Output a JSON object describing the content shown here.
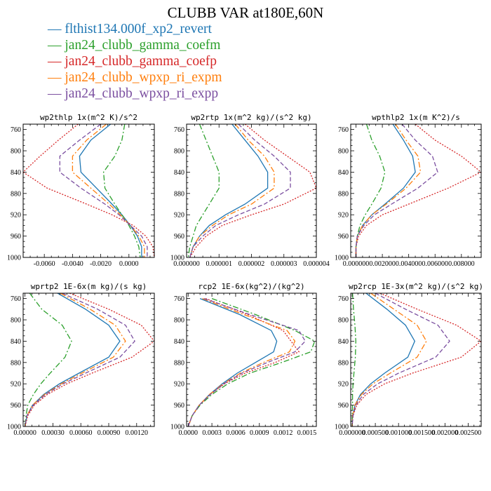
{
  "page_title": "CLUBB VAR at180E,60N",
  "series_meta": [
    {
      "name": "flthist134.000f_xp2_revert",
      "color": "#1f77b4",
      "dash": ""
    },
    {
      "name": "jan24_clubb_gamma_coefm",
      "color": "#2ca02c",
      "dash": "8,3,2,3"
    },
    {
      "name": "jan24_clubb_gamma_coefp",
      "color": "#d62728",
      "dash": "2,2"
    },
    {
      "name": "jan24_clubb_wpxp_ri_expm",
      "color": "#ff7f0e",
      "dash": "8,3,2,3"
    },
    {
      "name": "jan24_clubb_wpxp_ri_expp",
      "color": "#7b4fa0",
      "dash": "6,3"
    }
  ],
  "chart_data": [
    {
      "type": "line",
      "title": "wp2thlp  1x(m^2 K)/s^2",
      "xlim": [
        -0.0075,
        0.0018
      ],
      "ylim": [
        1000,
        750
      ],
      "y_inverted": true,
      "xticks": [
        -0.006,
        -0.004,
        -0.002,
        0.0
      ],
      "xtick_labels": [
        "-0.0060",
        "-0.0040",
        "-0.0020",
        "0.0000"
      ],
      "yticks": [
        760,
        800,
        840,
        880,
        920,
        960,
        1000
      ],
      "pressure": [
        750,
        780,
        810,
        840,
        870,
        900,
        920,
        940,
        960,
        980,
        1000
      ],
      "series": [
        {
          "name": "flthist134.000f_xp2_revert",
          "values": [
            -0.0013,
            -0.0027,
            -0.0035,
            -0.0034,
            -0.0023,
            -0.0012,
            -0.0005,
            0.0001,
            0.0006,
            0.0009,
            0.0009
          ]
        },
        {
          "name": "jan24_clubb_gamma_coefm",
          "values": [
            -0.0003,
            -0.0005,
            -0.001,
            -0.0018,
            -0.0017,
            -0.001,
            -0.0005,
            0.0,
            0.0004,
            0.0007,
            0.0008
          ]
        },
        {
          "name": "jan24_clubb_gamma_coefp",
          "values": [
            -0.0036,
            -0.005,
            -0.0063,
            -0.0075,
            -0.0058,
            -0.003,
            -0.0012,
            0.0003,
            0.0012,
            0.0017,
            0.0018
          ]
        },
        {
          "name": "jan24_clubb_wpxp_ri_expm",
          "values": [
            -0.0016,
            -0.003,
            -0.004,
            -0.004,
            -0.0027,
            -0.0014,
            -0.0006,
            0.0001,
            0.0007,
            0.0011,
            0.0011
          ]
        },
        {
          "name": "jan24_clubb_wpxp_ri_expp",
          "values": [
            -0.002,
            -0.0035,
            -0.0049,
            -0.0049,
            -0.0034,
            -0.0017,
            -0.0007,
            0.0001,
            0.0009,
            0.0013,
            0.0013
          ]
        }
      ]
    },
    {
      "type": "line",
      "title": "wp2rtp  1x(m^2 kg)/(s^2 kg)",
      "xlim": [
        0.0,
        4e-06
      ],
      "ylim": [
        1000,
        750
      ],
      "y_inverted": true,
      "xticks": [
        0.0,
        1e-06,
        2e-06,
        3e-06,
        4e-06
      ],
      "xtick_labels": [
        "0.000000",
        "0.000001",
        "0.000002",
        "0.000003",
        "0.000004"
      ],
      "yticks": [
        760,
        800,
        840,
        880,
        920,
        960,
        1000
      ],
      "pressure": [
        750,
        780,
        810,
        840,
        870,
        900,
        920,
        940,
        960,
        980,
        1000
      ],
      "series": [
        {
          "name": "flthist134.000f_xp2_revert",
          "values": [
            1.4e-06,
            1.8e-06,
            2.2e-06,
            2.5e-06,
            2.5e-06,
            1.8e-06,
            1.2e-06,
            7e-07,
            4e-07,
            2e-07,
            1e-07
          ]
        },
        {
          "name": "jan24_clubb_gamma_coefm",
          "values": [
            4e-07,
            6e-07,
            8e-07,
            1e-06,
            1e-06,
            7e-07,
            5e-07,
            3e-07,
            2e-07,
            1e-07,
            5e-08
          ]
        },
        {
          "name": "jan24_clubb_gamma_coefp",
          "values": [
            1.8e-06,
            2.4e-06,
            3.1e-06,
            3.8e-06,
            4e-06,
            3e-06,
            2e-06,
            1.1e-06,
            6e-07,
            3e-07,
            1e-07
          ]
        },
        {
          "name": "jan24_clubb_wpxp_ri_expm",
          "values": [
            1.5e-06,
            1.9e-06,
            2.4e-06,
            2.7e-06,
            2.7e-06,
            2e-06,
            1.3e-06,
            8e-07,
            4e-07,
            2e-07,
            1e-07
          ]
        },
        {
          "name": "jan24_clubb_wpxp_ri_expp",
          "values": [
            1.6e-06,
            2.1e-06,
            2.7e-06,
            3.2e-06,
            3.2e-06,
            2.4e-06,
            1.6e-06,
            9e-07,
            5e-07,
            2e-07,
            1e-07
          ]
        }
      ]
    },
    {
      "type": "line",
      "title": "wpthlp2  1x(m K^2)/s",
      "xlim": [
        -0.0004,
        0.0095
      ],
      "ylim": [
        1000,
        750
      ],
      "y_inverted": true,
      "xticks": [
        0.0,
        0.002,
        0.004,
        0.006,
        0.008
      ],
      "xtick_labels": [
        "0.000000",
        "0.002000",
        "0.004000",
        "0.006000",
        "0.008000"
      ],
      "yticks": [
        760,
        800,
        840,
        880,
        920,
        960,
        1000
      ],
      "pressure": [
        750,
        780,
        810,
        840,
        870,
        900,
        920,
        940,
        960,
        980,
        1000
      ],
      "series": [
        {
          "name": "flthist134.000f_xp2_revert",
          "values": [
            0.0028,
            0.0036,
            0.0043,
            0.0045,
            0.0036,
            0.0022,
            0.0012,
            0.0005,
            0.0001,
            0.0,
            0.0
          ]
        },
        {
          "name": "jan24_clubb_gamma_coefm",
          "values": [
            0.0008,
            0.0012,
            0.0018,
            0.0022,
            0.0019,
            0.0012,
            0.0007,
            0.0003,
            0.0001,
            0.0,
            0.0
          ]
        },
        {
          "name": "jan24_clubb_gamma_coefp",
          "values": [
            0.0045,
            0.006,
            0.008,
            0.0095,
            0.007,
            0.004,
            0.002,
            0.0008,
            0.0002,
            0.0,
            0.0
          ]
        },
        {
          "name": "jan24_clubb_wpxp_ri_expm",
          "values": [
            0.003,
            0.0038,
            0.0047,
            0.0049,
            0.0038,
            0.0023,
            0.0012,
            0.0005,
            0.0001,
            0.0,
            0.0
          ]
        },
        {
          "name": "jan24_clubb_wpxp_ri_expp",
          "values": [
            0.0035,
            0.0045,
            0.0058,
            0.0062,
            0.0047,
            0.0027,
            0.0014,
            0.0006,
            0.0001,
            0.0,
            0.0
          ]
        }
      ]
    },
    {
      "type": "line",
      "title": "wprtp2  1E-6x(m kg)/(s kg)",
      "xlim": [
        -2e-05,
        0.00139
      ],
      "ylim": [
        1000,
        750
      ],
      "y_inverted": true,
      "xticks": [
        0.0,
        0.0003,
        0.0006,
        0.0009,
        0.0012
      ],
      "xtick_labels": [
        "0.00000",
        "0.00030",
        "0.00060",
        "0.00090",
        "0.00120"
      ],
      "yticks": [
        760,
        800,
        840,
        880,
        920,
        960,
        1000
      ],
      "pressure": [
        750,
        780,
        810,
        840,
        870,
        900,
        920,
        940,
        960,
        980,
        1000
      ],
      "series": [
        {
          "name": "flthist134.000f_xp2_revert",
          "values": [
            0.00035,
            0.00065,
            0.0009,
            0.00102,
            0.0009,
            0.00058,
            0.00037,
            0.0002,
            8e-05,
            2e-05,
            0.0
          ]
        },
        {
          "name": "jan24_clubb_gamma_coefm",
          "values": [
            5e-05,
            0.00018,
            0.0004,
            0.0005,
            0.00043,
            0.00027,
            0.00017,
            9e-05,
            3e-05,
            1e-05,
            0.0
          ]
        },
        {
          "name": "jan24_clubb_gamma_coefp",
          "values": [
            0.00048,
            0.0009,
            0.00125,
            0.00139,
            0.00115,
            0.00072,
            0.00045,
            0.00024,
            0.0001,
            3e-05,
            0.0
          ]
        },
        {
          "name": "jan24_clubb_wpxp_ri_expm",
          "values": [
            0.00038,
            0.0007,
            0.00097,
            0.00108,
            0.00095,
            0.00061,
            0.00039,
            0.00021,
            8e-05,
            2e-05,
            0.0
          ]
        },
        {
          "name": "jan24_clubb_wpxp_ri_expp",
          "values": [
            0.0004,
            0.00078,
            0.00108,
            0.00118,
            0.00102,
            0.00065,
            0.00041,
            0.00022,
            9e-05,
            2e-05,
            0.0
          ]
        }
      ]
    },
    {
      "type": "line",
      "title": "rcp2  1E-6x(kg^2)/(kg^2)",
      "xlim": [
        -2e-05,
        0.00162
      ],
      "ylim": [
        1000,
        750
      ],
      "y_inverted": true,
      "xticks": [
        0.0,
        0.0003,
        0.0006,
        0.0009,
        0.0012,
        0.0015
      ],
      "xtick_labels": [
        "0.0000",
        "0.0003",
        "0.0006",
        "0.0009",
        "0.0012",
        "0.0015"
      ],
      "yticks": [
        760,
        800,
        840,
        880,
        920,
        960,
        1000
      ],
      "pressure": [
        760,
        790,
        820,
        840,
        860,
        880,
        900,
        920,
        940,
        960,
        980,
        1000
      ],
      "series": [
        {
          "name": "flthist134.000f_xp2_revert",
          "values": [
            0.00015,
            0.00065,
            0.00105,
            0.00112,
            0.00108,
            0.00085,
            0.00062,
            0.00043,
            0.00027,
            0.00014,
            5e-05,
            0.0
          ]
        },
        {
          "name": "jan24_clubb_gamma_coefm",
          "values": [
            0.0003,
            0.00085,
            0.00135,
            0.0016,
            0.00155,
            0.00118,
            0.00078,
            0.0005,
            0.0003,
            0.00015,
            5e-05,
            0.0
          ]
        },
        {
          "name": "jan24_clubb_gamma_coefp",
          "values": [
            0.00022,
            0.00075,
            0.0012,
            0.0013,
            0.0014,
            0.0011,
            0.00072,
            0.00046,
            0.00028,
            0.00014,
            5e-05,
            0.0
          ]
        },
        {
          "name": "jan24_clubb_wpxp_ri_expm",
          "values": [
            0.00018,
            0.0007,
            0.00125,
            0.00135,
            0.00128,
            0.00095,
            0.00066,
            0.00044,
            0.00027,
            0.00014,
            5e-05,
            0.0
          ]
        },
        {
          "name": "jan24_clubb_wpxp_ri_expp",
          "values": [
            0.0002,
            0.00078,
            0.0014,
            0.00148,
            0.00135,
            0.001,
            0.00068,
            0.00045,
            0.00028,
            0.00014,
            5e-05,
            0.0
          ]
        }
      ]
    },
    {
      "type": "line",
      "title": "wp2rcp  1E-3x(m^2 kg)/(s^2 kg)",
      "xlim": [
        -3e-05,
        0.00278
      ],
      "ylim": [
        1000,
        750
      ],
      "y_inverted": true,
      "xticks": [
        0.0,
        0.0005,
        0.001,
        0.0015,
        0.002,
        0.0025
      ],
      "xtick_labels": [
        "0.000000",
        "0.000500",
        "0.001000",
        "0.001500",
        "0.002000",
        "0.002500"
      ],
      "yticks": [
        760,
        800,
        840,
        880,
        920,
        960,
        1000
      ],
      "pressure": [
        750,
        780,
        810,
        840,
        870,
        900,
        920,
        940,
        960,
        980,
        1000
      ],
      "series": [
        {
          "name": "flthist134.000f_xp2_revert",
          "values": [
            0.0003,
            0.00075,
            0.00115,
            0.00135,
            0.0012,
            0.0007,
            0.0004,
            0.00018,
            6e-05,
            1e-05,
            0.0
          ]
        },
        {
          "name": "jan24_clubb_gamma_coefm",
          "values": [
            1e-05,
            3e-05,
            6e-05,
            8e-05,
            7e-05,
            4e-05,
            2e-05,
            1e-05,
            1e-05,
            0.0,
            0.0
          ]
        },
        {
          "name": "jan24_clubb_gamma_coefp",
          "values": [
            0.0006,
            0.0014,
            0.00225,
            0.00278,
            0.00235,
            0.0013,
            0.0007,
            0.0003,
            0.0001,
            2e-05,
            0.0
          ]
        },
        {
          "name": "jan24_clubb_wpxp_ri_expm",
          "values": [
            0.0004,
            0.0009,
            0.0014,
            0.0016,
            0.0014,
            0.00082,
            0.00045,
            0.0002,
            6e-05,
            1e-05,
            0.0
          ]
        },
        {
          "name": "jan24_clubb_wpxp_ri_expp",
          "values": [
            0.0005,
            0.00115,
            0.00185,
            0.0021,
            0.0018,
            0.001,
            0.00055,
            0.00024,
            8e-05,
            2e-05,
            0.0
          ]
        }
      ]
    }
  ]
}
